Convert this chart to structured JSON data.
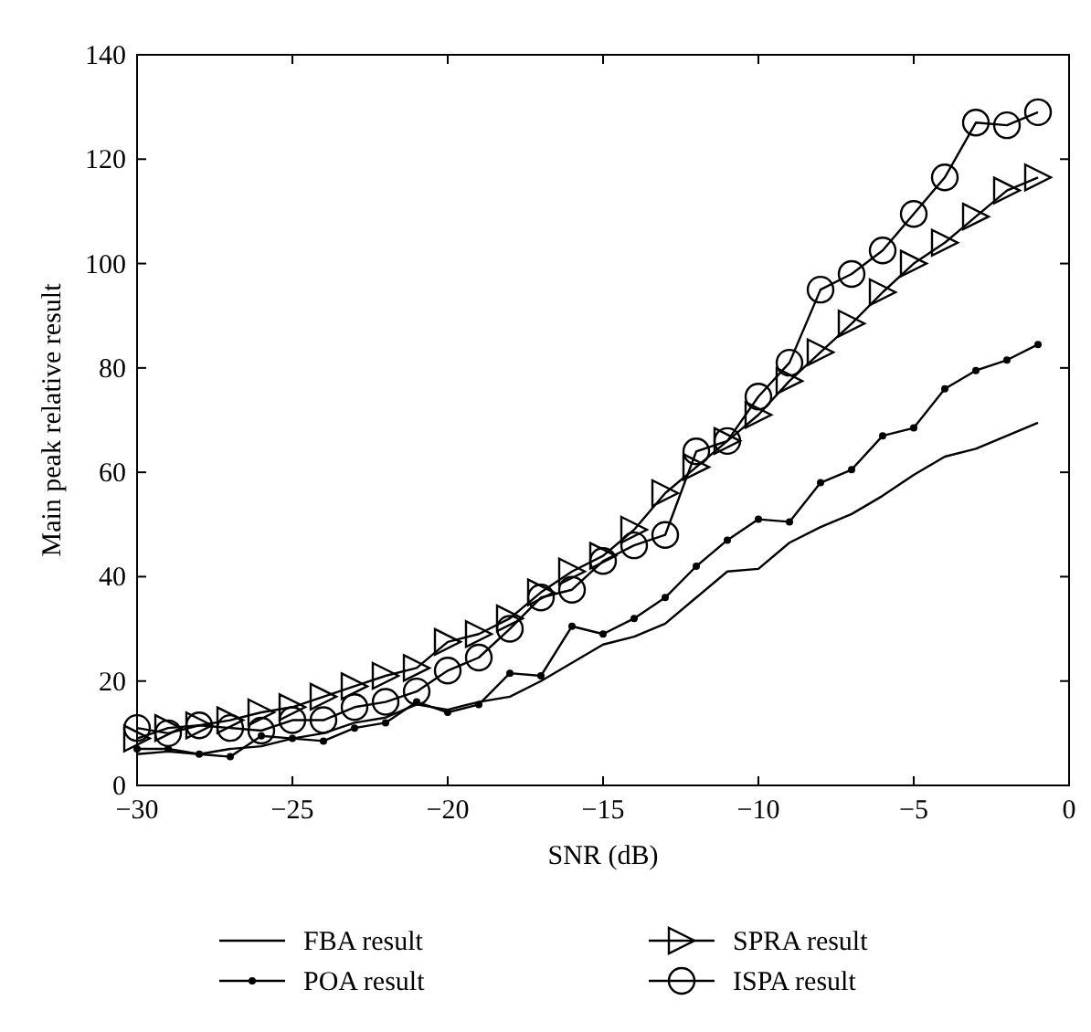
{
  "chart_data": {
    "type": "line",
    "xlabel": "SNR (dB)",
    "ylabel": "Main peak relative result",
    "x": [
      -30,
      -29,
      -28,
      -27,
      -26,
      -25,
      -24,
      -23,
      -22,
      -21,
      -20,
      -19,
      -18,
      -17,
      -16,
      -15,
      -14,
      -13,
      -12,
      -11,
      -10,
      -9,
      -8,
      -7,
      -6,
      -5,
      -4,
      -3,
      -2,
      -1
    ],
    "series": [
      {
        "name": "FBA result",
        "color": "#000000",
        "marker": "none",
        "values": [
          6,
          6.5,
          6,
          7,
          7.5,
          9,
          10,
          12,
          13,
          15.5,
          14.5,
          16,
          17,
          20,
          23.5,
          27,
          28.5,
          31,
          36,
          41,
          41.5,
          46.5,
          49.5,
          52,
          55.5,
          59.5,
          63,
          64.5,
          67,
          69.5
        ]
      },
      {
        "name": "POA result",
        "color": "#000000",
        "marker": "circle",
        "values": [
          7,
          7,
          6,
          5.5,
          9.5,
          9,
          8.5,
          11,
          12,
          16,
          14,
          15.5,
          21.5,
          21,
          30.5,
          29,
          32,
          36,
          42,
          47,
          51,
          50.5,
          58,
          60.5,
          67,
          68.5,
          76,
          79.5,
          81.5,
          84.5
        ]
      },
      {
        "name": "SPRA result",
        "color": "#000000",
        "marker": "triangle",
        "values": [
          9,
          11,
          11.5,
          12.5,
          14,
          15,
          17,
          19,
          21,
          22.5,
          27.5,
          29,
          32,
          37,
          41,
          44,
          49,
          56,
          61,
          66,
          71,
          77.5,
          83,
          88.5,
          94.5,
          100,
          104,
          109,
          114,
          116.5
        ]
      },
      {
        "name": "ISPA result",
        "color": "#000000",
        "marker": "circle",
        "values": [
          11,
          10,
          11.5,
          11,
          10.5,
          12.5,
          12.5,
          15,
          16,
          18,
          22,
          24.5,
          30,
          36,
          37.5,
          43,
          46,
          48,
          64,
          66,
          74.5,
          81,
          95,
          98,
          102.5,
          109.5,
          116.5,
          127,
          126.5,
          129
        ]
      }
    ],
    "xlim": [
      -30,
      0
    ],
    "xticks": [
      -30,
      -25,
      -20,
      -15,
      -10,
      -5,
      0
    ],
    "ylim": [
      0,
      140
    ],
    "yticks": [
      0,
      20,
      40,
      60,
      80,
      100,
      120,
      140
    ],
    "grid": false,
    "legend": "bottom",
    "line_style": "solid"
  }
}
